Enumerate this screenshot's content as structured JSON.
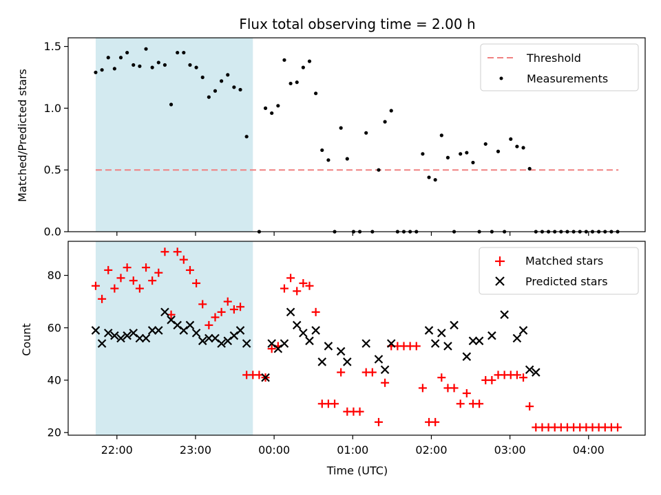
{
  "chart_data": [
    {
      "type": "scatter",
      "title": "Flux total observing time = 2.00 h",
      "xlabel": "",
      "ylabel": "Matched/Predicted stars",
      "xlim_hours": [
        -2.62,
        4.72
      ],
      "ylim": [
        0,
        1.57
      ],
      "yticks": [
        0.0,
        0.5,
        1.0,
        1.5
      ],
      "ytick_labels": [
        "0.0",
        "0.5",
        "1.0",
        "1.5"
      ],
      "shaded_interval_hours": [
        -2.27,
        -0.27
      ],
      "shaded_color": "#d3eaf0",
      "threshold": {
        "name": "Threshold",
        "y": 0.5,
        "x_range_hours": [
          -2.27,
          4.38
        ],
        "color": "#f08080",
        "style": "dashed"
      },
      "legend": {
        "location": "upper right",
        "entries": [
          "Threshold",
          "Measurements"
        ]
      },
      "series": [
        {
          "name": "Measurements",
          "color": "#000000",
          "marker": "dot",
          "points": [
            [
              -2.27,
              1.29
            ],
            [
              -2.19,
              1.31
            ],
            [
              -2.11,
              1.41
            ],
            [
              -2.03,
              1.32
            ],
            [
              -1.95,
              1.41
            ],
            [
              -1.87,
              1.45
            ],
            [
              -1.79,
              1.35
            ],
            [
              -1.71,
              1.34
            ],
            [
              -1.63,
              1.48
            ],
            [
              -1.55,
              1.33
            ],
            [
              -1.47,
              1.37
            ],
            [
              -1.39,
              1.35
            ],
            [
              -1.31,
              1.03
            ],
            [
              -1.23,
              1.45
            ],
            [
              -1.15,
              1.45
            ],
            [
              -1.07,
              1.35
            ],
            [
              -0.99,
              1.33
            ],
            [
              -0.91,
              1.25
            ],
            [
              -0.83,
              1.09
            ],
            [
              -0.75,
              1.14
            ],
            [
              -0.67,
              1.22
            ],
            [
              -0.59,
              1.27
            ],
            [
              -0.51,
              1.17
            ],
            [
              -0.43,
              1.15
            ],
            [
              -0.35,
              0.77
            ],
            [
              -0.19,
              0.0
            ],
            [
              -0.11,
              1.0
            ],
            [
              -0.03,
              0.96
            ],
            [
              0.05,
              1.02
            ],
            [
              0.13,
              1.39
            ],
            [
              0.21,
              1.2
            ],
            [
              0.29,
              1.21
            ],
            [
              0.37,
              1.33
            ],
            [
              0.45,
              1.38
            ],
            [
              0.53,
              1.12
            ],
            [
              0.61,
              0.66
            ],
            [
              0.69,
              0.58
            ],
            [
              0.77,
              0.0
            ],
            [
              0.85,
              0.84
            ],
            [
              0.93,
              0.59
            ],
            [
              1.01,
              0.0
            ],
            [
              1.09,
              0.0
            ],
            [
              1.17,
              0.8
            ],
            [
              1.25,
              0.0
            ],
            [
              1.33,
              0.5
            ],
            [
              1.41,
              0.89
            ],
            [
              1.49,
              0.98
            ],
            [
              1.57,
              0.0
            ],
            [
              1.65,
              0.0
            ],
            [
              1.73,
              0.0
            ],
            [
              1.81,
              0.0
            ],
            [
              1.89,
              0.63
            ],
            [
              1.97,
              0.44
            ],
            [
              2.05,
              0.42
            ],
            [
              2.13,
              0.78
            ],
            [
              2.21,
              0.6
            ],
            [
              2.29,
              0.0
            ],
            [
              2.37,
              0.63
            ],
            [
              2.45,
              0.64
            ],
            [
              2.53,
              0.56
            ],
            [
              2.61,
              0.0
            ],
            [
              2.69,
              0.71
            ],
            [
              2.77,
              0.0
            ],
            [
              2.85,
              0.65
            ],
            [
              2.93,
              0.0
            ],
            [
              3.01,
              0.75
            ],
            [
              3.09,
              0.69
            ],
            [
              3.17,
              0.68
            ],
            [
              3.25,
              0.51
            ],
            [
              3.33,
              0.0
            ],
            [
              3.41,
              0.0
            ],
            [
              3.49,
              0.0
            ],
            [
              3.57,
              0.0
            ],
            [
              3.65,
              0.0
            ],
            [
              3.73,
              0.0
            ],
            [
              3.81,
              0.0
            ],
            [
              3.89,
              0.0
            ],
            [
              3.97,
              0.0
            ],
            [
              4.05,
              0.0
            ],
            [
              4.13,
              0.0
            ],
            [
              4.21,
              0.0
            ],
            [
              4.29,
              0.0
            ],
            [
              4.37,
              0.0
            ]
          ]
        }
      ]
    },
    {
      "type": "scatter",
      "title": "",
      "xlabel": "Time (UTC)",
      "ylabel": "Count",
      "xlim_hours": [
        -2.62,
        4.72
      ],
      "ylim": [
        19,
        93
      ],
      "yticks": [
        20,
        40,
        60,
        80
      ],
      "ytick_labels": [
        "20",
        "40",
        "60",
        "80"
      ],
      "xticks_hours": [
        -2,
        -1,
        0,
        1,
        2,
        3,
        4
      ],
      "xtick_labels": [
        "22:00",
        "23:00",
        "00:00",
        "01:00",
        "02:00",
        "03:00",
        "04:00"
      ],
      "shaded_interval_hours": [
        -2.27,
        -0.27
      ],
      "shaded_color": "#d3eaf0",
      "legend": {
        "location": "upper right",
        "entries": [
          "Matched stars",
          "Predicted stars"
        ]
      },
      "series": [
        {
          "name": "Matched stars",
          "color": "#ff0000",
          "marker": "plus",
          "points": [
            [
              -2.27,
              76
            ],
            [
              -2.19,
              71
            ],
            [
              -2.11,
              82
            ],
            [
              -2.03,
              75
            ],
            [
              -1.95,
              79
            ],
            [
              -1.87,
              83
            ],
            [
              -1.79,
              78
            ],
            [
              -1.71,
              75
            ],
            [
              -1.63,
              83
            ],
            [
              -1.55,
              78
            ],
            [
              -1.47,
              81
            ],
            [
              -1.39,
              89
            ],
            [
              -1.31,
              65
            ],
            [
              -1.23,
              89
            ],
            [
              -1.15,
              86
            ],
            [
              -1.07,
              82
            ],
            [
              -0.99,
              77
            ],
            [
              -0.91,
              69
            ],
            [
              -0.83,
              61
            ],
            [
              -0.75,
              64
            ],
            [
              -0.67,
              66
            ],
            [
              -0.59,
              70
            ],
            [
              -0.51,
              67
            ],
            [
              -0.43,
              68
            ],
            [
              -0.35,
              42
            ],
            [
              -0.27,
              42
            ],
            [
              -0.19,
              42
            ],
            [
              -0.11,
              41
            ],
            [
              -0.03,
              52
            ],
            [
              0.05,
              53
            ],
            [
              0.13,
              75
            ],
            [
              0.21,
              79
            ],
            [
              0.29,
              74
            ],
            [
              0.37,
              77
            ],
            [
              0.45,
              76
            ],
            [
              0.53,
              66
            ],
            [
              0.61,
              31
            ],
            [
              0.69,
              31
            ],
            [
              0.77,
              31
            ],
            [
              0.85,
              43
            ],
            [
              0.93,
              28
            ],
            [
              1.01,
              28
            ],
            [
              1.09,
              28
            ],
            [
              1.17,
              43
            ],
            [
              1.25,
              43
            ],
            [
              1.33,
              24
            ],
            [
              1.41,
              39
            ],
            [
              1.49,
              53
            ],
            [
              1.57,
              53
            ],
            [
              1.65,
              53
            ],
            [
              1.73,
              53
            ],
            [
              1.81,
              53
            ],
            [
              1.89,
              37
            ],
            [
              1.97,
              24
            ],
            [
              2.05,
              24
            ],
            [
              2.13,
              41
            ],
            [
              2.21,
              37
            ],
            [
              2.29,
              37
            ],
            [
              2.37,
              31
            ],
            [
              2.45,
              35
            ],
            [
              2.53,
              31
            ],
            [
              2.61,
              31
            ],
            [
              2.69,
              40
            ],
            [
              2.77,
              40
            ],
            [
              2.85,
              42
            ],
            [
              2.93,
              42
            ],
            [
              3.01,
              42
            ],
            [
              3.09,
              42
            ],
            [
              3.17,
              41
            ],
            [
              3.25,
              30
            ],
            [
              3.33,
              22
            ],
            [
              3.41,
              22
            ],
            [
              3.49,
              22
            ],
            [
              3.57,
              22
            ],
            [
              3.65,
              22
            ],
            [
              3.73,
              22
            ],
            [
              3.81,
              22
            ],
            [
              3.89,
              22
            ],
            [
              3.97,
              22
            ],
            [
              4.05,
              22
            ],
            [
              4.13,
              22
            ],
            [
              4.21,
              22
            ],
            [
              4.29,
              22
            ],
            [
              4.37,
              22
            ]
          ]
        },
        {
          "name": "Predicted stars",
          "color": "#000000",
          "marker": "x",
          "points": [
            [
              -2.27,
              59
            ],
            [
              -2.19,
              54
            ],
            [
              -2.11,
              58
            ],
            [
              -2.03,
              57
            ],
            [
              -1.95,
              56
            ],
            [
              -1.87,
              57
            ],
            [
              -1.79,
              58
            ],
            [
              -1.71,
              56
            ],
            [
              -1.63,
              56
            ],
            [
              -1.55,
              59
            ],
            [
              -1.47,
              59
            ],
            [
              -1.39,
              66
            ],
            [
              -1.31,
              63
            ],
            [
              -1.23,
              61
            ],
            [
              -1.15,
              59
            ],
            [
              -1.07,
              61
            ],
            [
              -0.99,
              58
            ],
            [
              -0.91,
              55
            ],
            [
              -0.83,
              56
            ],
            [
              -0.75,
              56
            ],
            [
              -0.67,
              54
            ],
            [
              -0.59,
              55
            ],
            [
              -0.51,
              57
            ],
            [
              -0.43,
              59
            ],
            [
              -0.35,
              54
            ],
            [
              -0.11,
              41
            ],
            [
              -0.03,
              54
            ],
            [
              0.05,
              52
            ],
            [
              0.13,
              54
            ],
            [
              0.21,
              66
            ],
            [
              0.29,
              61
            ],
            [
              0.37,
              58
            ],
            [
              0.45,
              55
            ],
            [
              0.53,
              59
            ],
            [
              0.61,
              47
            ],
            [
              0.69,
              53
            ],
            [
              0.85,
              51
            ],
            [
              0.93,
              47
            ],
            [
              1.17,
              54
            ],
            [
              1.33,
              48
            ],
            [
              1.41,
              44
            ],
            [
              1.49,
              54
            ],
            [
              1.97,
              59
            ],
            [
              2.05,
              54
            ],
            [
              2.13,
              58
            ],
            [
              2.21,
              53
            ],
            [
              2.29,
              61
            ],
            [
              2.45,
              49
            ],
            [
              2.53,
              55
            ],
            [
              2.61,
              55
            ],
            [
              2.77,
              57
            ],
            [
              2.93,
              65
            ],
            [
              3.09,
              56
            ],
            [
              3.17,
              59
            ],
            [
              3.25,
              44
            ],
            [
              3.33,
              43
            ]
          ]
        }
      ]
    }
  ]
}
